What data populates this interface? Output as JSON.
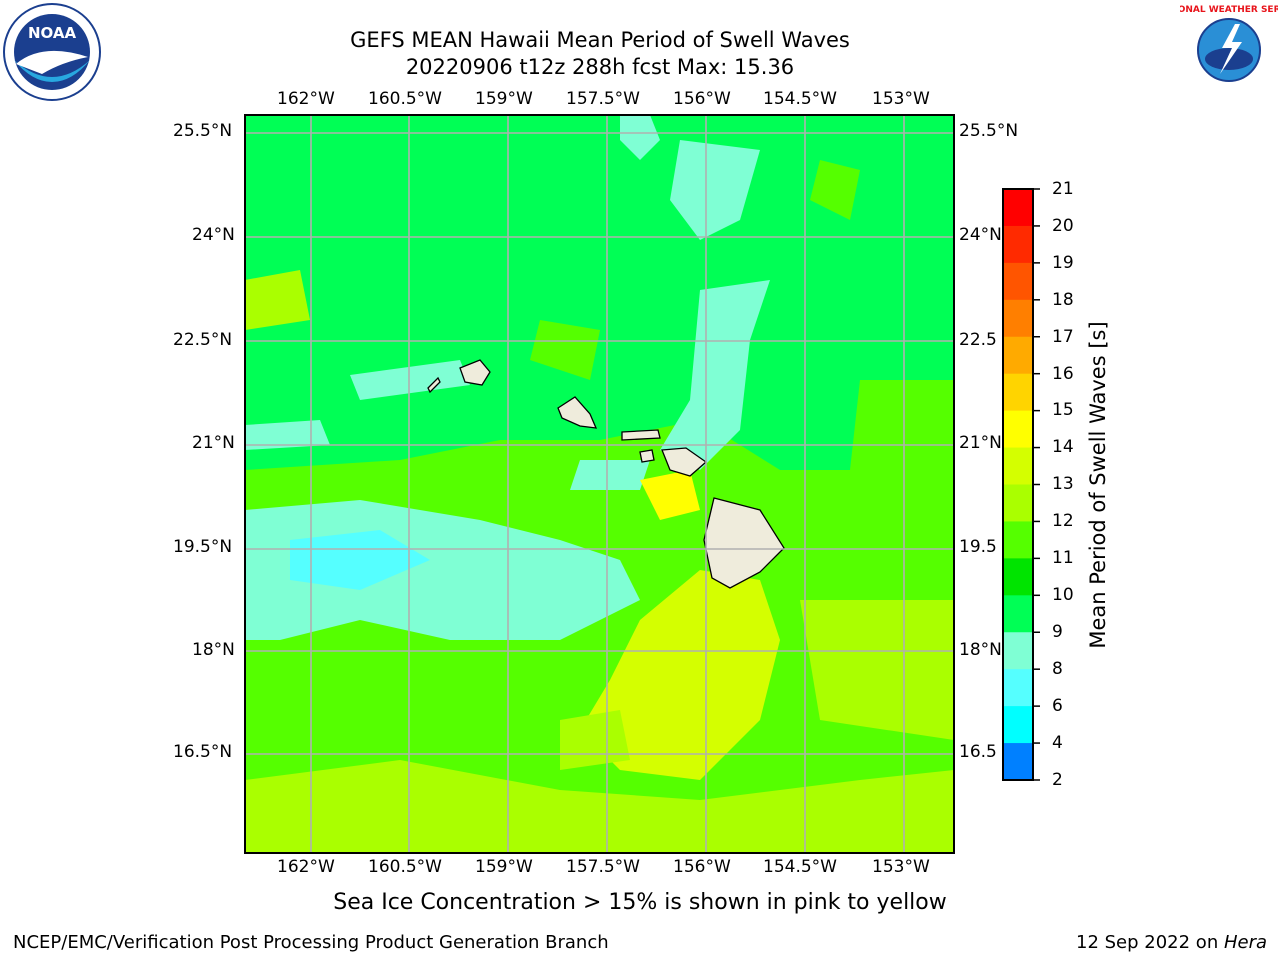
{
  "title_line1": "GEFS MEAN Hawaii Mean Period of Swell Waves",
  "title_line2": "20220906 t12z 288h fcst   Max: 15.36",
  "lon_labels": [
    "162°W",
    "160.5°W",
    "159°W",
    "157.5°W",
    "156°W",
    "154.5°W",
    "153°W"
  ],
  "lat_labels": [
    "25.5°N",
    "24°N",
    "22.5°N",
    "21°N",
    "19.5°N",
    "18°N",
    "16.5°N"
  ],
  "lat_labels_right": [
    "25.5°N",
    "24°N",
    "22.5",
    "21°N",
    "19.5",
    "18°N",
    "16.5"
  ],
  "colorbar": {
    "title": "Mean Period of Swell Waves [s]",
    "ticks": [
      "21",
      "20",
      "19",
      "18",
      "17",
      "16",
      "15",
      "14",
      "13",
      "12",
      "11",
      "10",
      "9",
      "8",
      "6",
      "4",
      "2"
    ],
    "colors": [
      "#ff0000",
      "#ff2a00",
      "#ff5500",
      "#ff7f00",
      "#ffaa00",
      "#ffd400",
      "#ffff00",
      "#d4ff00",
      "#aaff00",
      "#55ff00",
      "#00e400",
      "#00ff55",
      "#7fffd4",
      "#55ffff",
      "#00ffff",
      "#0080ff",
      "#0000ff"
    ]
  },
  "ice_note": "Sea Ice Concentration > 15% is shown in pink to yellow",
  "footer_left": "NCEP/EMC/Verification Post Processing Product Generation Branch",
  "footer_right_date": "12 Sep 2022 on ",
  "footer_right_host": "Hera",
  "noaa_logo_text": "NOAA",
  "nws_logo_text": "NATIONAL WEATHER SERVICE"
}
